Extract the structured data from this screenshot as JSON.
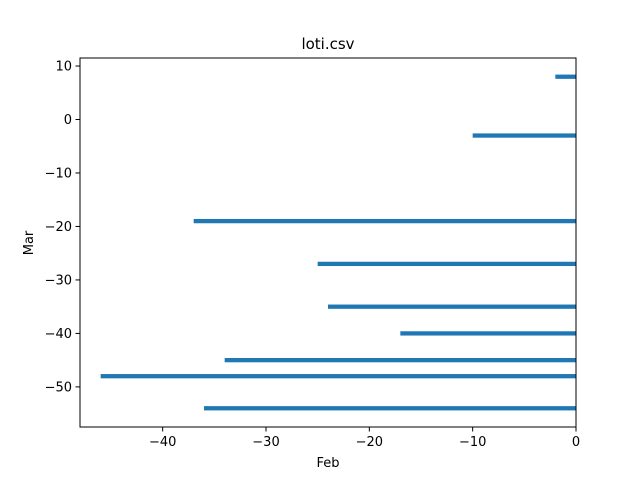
{
  "chart_data": {
    "type": "bar",
    "orientation": "horizontal",
    "title": "loti.csv",
    "xlabel": "Feb",
    "ylabel": "Mar",
    "xlim": [
      -48,
      0
    ],
    "ylim": [
      -57.5,
      11.5
    ],
    "xticks": [
      -40,
      -30,
      -20,
      -10,
      0
    ],
    "xtick_labels": [
      "−40",
      "−30",
      "−20",
      "−10",
      "0"
    ],
    "yticks": [
      10,
      0,
      -10,
      -20,
      -30,
      -40,
      -50
    ],
    "ytick_labels": [
      "10",
      "0",
      "−10",
      "−20",
      "−30",
      "−40",
      "−50"
    ],
    "bar_height": 0.8,
    "color": "#1f77b4",
    "grid": false,
    "legend": "none",
    "y": [
      8,
      -3,
      -19,
      -27,
      -35,
      -40,
      -45,
      -48,
      -54
    ],
    "values": [
      -2,
      -10,
      -37,
      -25,
      -24,
      -17,
      -34,
      -46,
      -36
    ]
  }
}
